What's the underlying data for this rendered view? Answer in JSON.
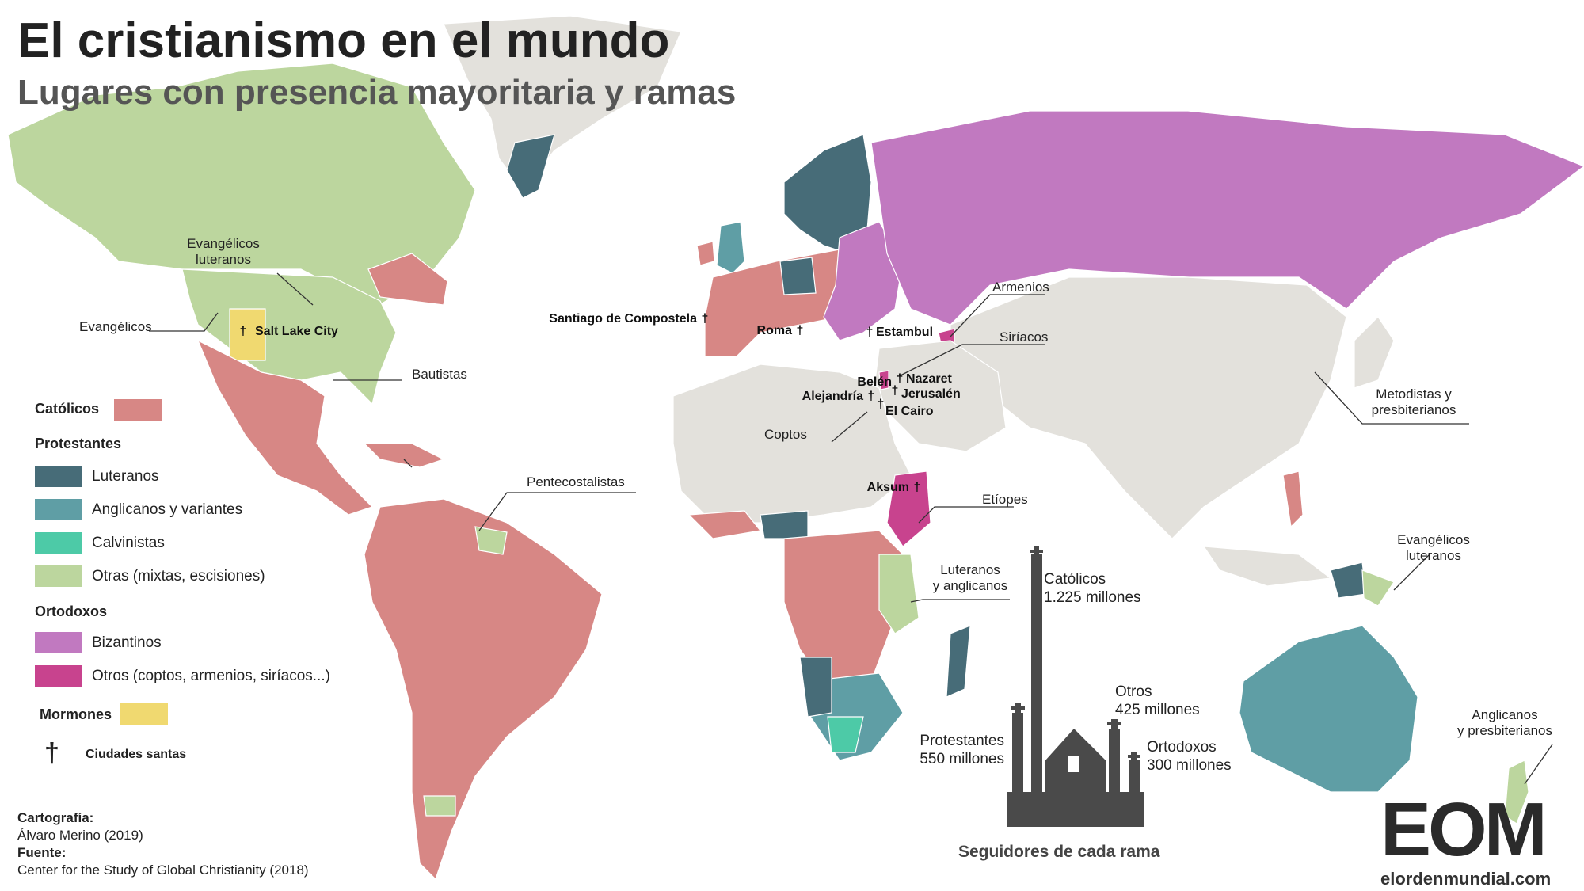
{
  "title": "El cristianismo en el mundo",
  "subtitle": "Lugares con presencia mayoritaria y ramas",
  "colors": {
    "catolicos": "#d78785",
    "luteranos": "#476c78",
    "anglicanos": "#5f9ea5",
    "calvinistas": "#4dcaa7",
    "otras_protestantes": "#bcd69e",
    "bizantinos": "#c179c0",
    "otros_ortodoxos": "#c8438e",
    "mormones": "#f0d970",
    "sin_mayoria": "#e3e1dc",
    "ocean": "#ffffff"
  },
  "legend": {
    "catolicos": "Católicos",
    "protestantes_heading": "Protestantes",
    "luteranos": "Luteranos",
    "anglicanos": "Anglicanos y variantes",
    "calvinistas": "Calvinistas",
    "otras": "Otras (mixtas, escisiones)",
    "ortodoxos_heading": "Ortodoxos",
    "bizantinos": "Bizantinos",
    "otros_ortodoxos": "Otros (coptos, armenios, siríacos...)",
    "mormones": "Mormones",
    "ciudades_santas": "Ciudades santas",
    "cross_icon": "latin-cross-icon"
  },
  "annotations": {
    "evangelicos_luteranos_na_1": "Evangélicos",
    "evangelicos_luteranos_na_2": "luteranos",
    "evangelicos": "Evangélicos",
    "bautistas": "Bautistas",
    "pentecostalistas": "Pentecostalistas",
    "armenios": "Armenios",
    "siriacos": "Siríacos",
    "coptos": "Coptos",
    "etiopes": "Etíopes",
    "luteranos_anglicanos_1": "Luteranos",
    "luteranos_anglicanos_2": "y anglicanos",
    "metodistas_1": "Metodistas y",
    "metodistas_2": "presbiterianos",
    "evangelicos_png_1": "Evangélicos",
    "evangelicos_png_2": "luteranos",
    "anglicanos_nz_1": "Anglicanos",
    "anglicanos_nz_2": "y presbiterianos"
  },
  "cities": {
    "salt_lake": "Salt Lake City",
    "santiago": "Santiago de Compostela",
    "roma": "Roma",
    "estambul": "Estambul",
    "belen": "Belén",
    "nazaret": "Nazaret",
    "jerusalen": "Jerusalén",
    "alejandria": "Alejandría",
    "el_cairo": "El Cairo",
    "aksum": "Aksum"
  },
  "followers": {
    "caption": "Seguidores de cada rama",
    "catolicos_label": "Católicos",
    "catolicos_value": "1.225 millones",
    "otros_label": "Otros",
    "otros_value": "425 millones",
    "protestantes_label": "Protestantes",
    "protestantes_value": "550 millones",
    "ortodoxos_label": "Ortodoxos",
    "ortodoxos_value": "300 millones"
  },
  "credits": {
    "cartografia_label": "Cartografía:",
    "cartografia_value": "Álvaro Merino (2019)",
    "fuente_label": "Fuente:",
    "fuente_value": "Center for the Study of Global Christianity (2018)"
  },
  "logo": {
    "letters": "EOM",
    "site": "elordenmundial.com"
  }
}
